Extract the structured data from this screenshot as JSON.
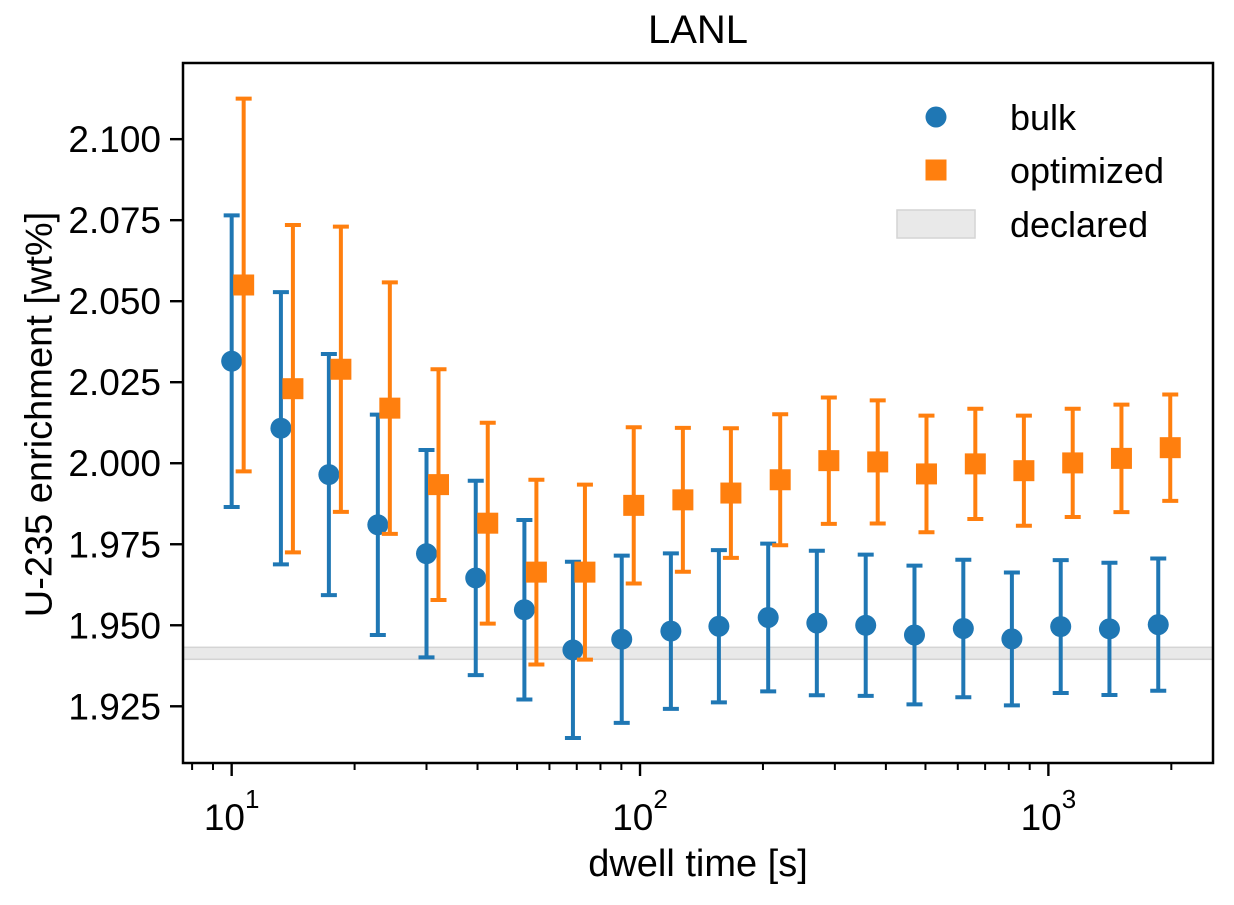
{
  "chart_data": {
    "type": "scatter",
    "title": "LANL",
    "xlabel": "dwell time [s]",
    "ylabel": "U-235 enrichment [wt%]",
    "x_scale": "log",
    "xlim": [
      7.6,
      2530
    ],
    "ylim": [
      1.9075,
      2.1235
    ],
    "grid": false,
    "x_major_ticks": [
      {
        "v": 10,
        "base": "10",
        "sup": "1"
      },
      {
        "v": 100,
        "base": "10",
        "sup": "2"
      },
      {
        "v": 1000,
        "base": "10",
        "sup": "3"
      }
    ],
    "x_minor_ticks": [
      8,
      9,
      20,
      30,
      40,
      50,
      60,
      70,
      80,
      90,
      200,
      300,
      400,
      500,
      600,
      700,
      800,
      900,
      2000
    ],
    "y_ticks": [
      {
        "v": 1.925,
        "label": "1.925"
      },
      {
        "v": 1.95,
        "label": "1.950"
      },
      {
        "v": 1.975,
        "label": "1.975"
      },
      {
        "v": 2.0,
        "label": "2.000"
      },
      {
        "v": 2.025,
        "label": "2.025"
      },
      {
        "v": 2.05,
        "label": "2.050"
      },
      {
        "v": 2.075,
        "label": "2.075"
      },
      {
        "v": 2.1,
        "label": "2.100"
      }
    ],
    "x": [
      10,
      13.2,
      17.3,
      22.8,
      30,
      39.6,
      52.1,
      68.5,
      90.2,
      119,
      156,
      206,
      271,
      357,
      470,
      619,
      814,
      1072,
      1411,
      1858
    ],
    "series": [
      {
        "name": "bulk",
        "marker": "circle",
        "color": "#1f77b4",
        "x_offset_factor": 1.0,
        "values": [
          2.0315,
          2.0108,
          1.9965,
          1.981,
          1.9721,
          1.9646,
          1.9548,
          1.9424,
          1.9457,
          1.9482,
          1.9497,
          1.9524,
          1.9507,
          1.95,
          1.947,
          1.949,
          1.9458,
          1.9496,
          1.9489,
          1.9502
        ],
        "errors": [
          0.045,
          0.042,
          0.0372,
          0.034,
          0.032,
          0.03,
          0.0277,
          0.0272,
          0.0258,
          0.024,
          0.0235,
          0.0228,
          0.0223,
          0.0218,
          0.0214,
          0.0212,
          0.0205,
          0.0205,
          0.0204,
          0.0204
        ]
      },
      {
        "name": "optimized",
        "marker": "square",
        "color": "#ff7f0e",
        "x_offset_factor": 1.07,
        "values": [
          2.055,
          2.023,
          2.029,
          2.017,
          1.9934,
          1.9815,
          1.9664,
          1.9664,
          1.987,
          1.9887,
          1.9908,
          1.9949,
          2.0008,
          2.0004,
          1.9967,
          1.9998,
          1.9977,
          2.0001,
          2.0015,
          2.0048
        ],
        "errors": [
          0.0575,
          0.0505,
          0.044,
          0.0388,
          0.0356,
          0.031,
          0.0285,
          0.027,
          0.0241,
          0.0222,
          0.02,
          0.0202,
          0.0195,
          0.019,
          0.018,
          0.017,
          0.017,
          0.0167,
          0.0166,
          0.0164
        ]
      }
    ],
    "declared_band": {
      "label": "declared",
      "ymin": 1.9395,
      "ymax": 1.9432,
      "fill": "#e9e9e9",
      "edge": "#d4d4d4"
    },
    "legend": {
      "position": "upper right",
      "entries": [
        "bulk",
        "optimized",
        "declared"
      ]
    }
  }
}
